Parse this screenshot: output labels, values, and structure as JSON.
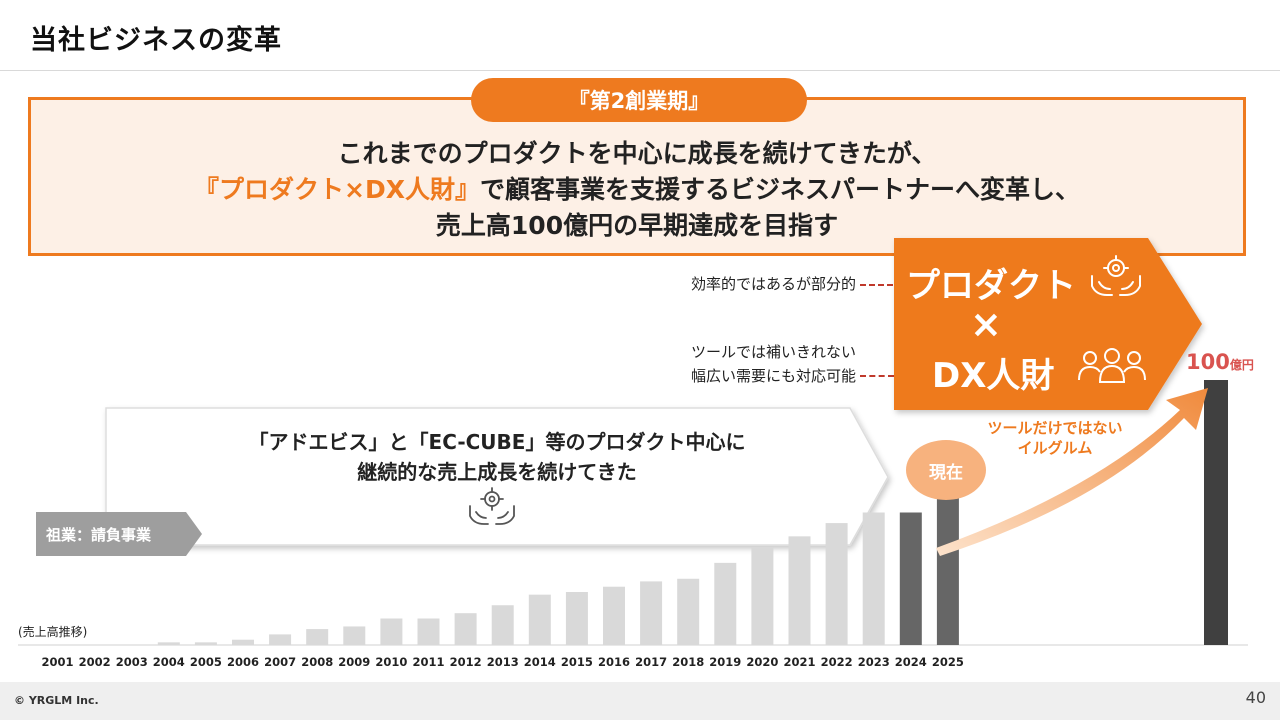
{
  "page_title": "当社ビジネスの変革",
  "banner": {
    "tab": "『第2創業期』",
    "line1": "これまでのプロダクトを中心に成長を続けてきたが、",
    "line2_highlight": "『プロダクト×DX人財』",
    "line2_rest": "で顧客事業を支援するビジネスパートナーへ変革し、",
    "line3": "売上高100億円の早期達成を目指す"
  },
  "notes": {
    "note1": "効率的ではあるが部分的",
    "note2_line1": "ツールでは補いきれない",
    "note2_line2": "幅広い需要にも対応可能"
  },
  "highlight": {
    "product": "プロダクト",
    "times": "×",
    "dx": "DX人財"
  },
  "past_arrow": {
    "line1": "「アドエビス」と「EC-CUBE」等のプロダクト中心に",
    "line2": "継続的な売上成長を続けてきた"
  },
  "origin_tag": "祖業：請負事業",
  "present_label": "現在",
  "curve_label": {
    "line1": "ツールだけではない",
    "line2": "イルグルム"
  },
  "target": {
    "value": "100",
    "unit": "億円"
  },
  "chart_caption": "(売上高推移)",
  "footer": {
    "copyright": "© YRGLM Inc.",
    "page_number": "40"
  },
  "colors": {
    "accent": "#ee7a1f",
    "past_bar": "#d9d9d9",
    "recent_bar": "#666666",
    "target_bar": "#404040",
    "target_label": "#d9534f"
  },
  "icons": [
    "gear-hands-icon",
    "team-icon"
  ],
  "chart_data": {
    "type": "bar",
    "title": "",
    "xlabel": "",
    "ylabel": "",
    "categories": [
      "2001",
      "2002",
      "2003",
      "2004",
      "2005",
      "2006",
      "2007",
      "2008",
      "2009",
      "2010",
      "2011",
      "2012",
      "2013",
      "2014",
      "2015",
      "2016",
      "2017",
      "2018",
      "2019",
      "2020",
      "2021",
      "2022",
      "2023",
      "2024",
      "2025"
    ],
    "values": [
      0,
      0,
      0,
      1,
      1,
      2,
      4,
      6,
      7,
      10,
      10,
      12,
      15,
      19,
      20,
      22,
      24,
      25,
      31,
      37,
      41,
      46,
      50,
      50,
      61
    ],
    "target": 100,
    "ylim": [
      0,
      100
    ],
    "grid": false,
    "legend": "none"
  }
}
